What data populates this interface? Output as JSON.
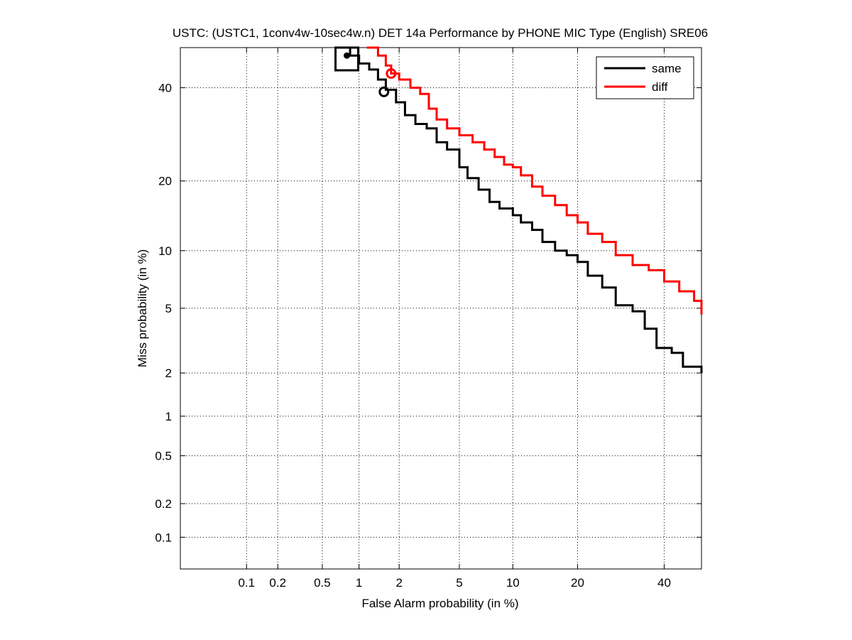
{
  "chart_data": {
    "type": "line",
    "subtype": "DET curve (normal deviate scale)",
    "title": "USTC: (USTC1, 1conv4w-10sec4w.n) DET 14a Performance by PHONE MIC Type (English) SRE06",
    "xlabel": "False Alarm probability (in %)",
    "ylabel": "Miss probability (in %)",
    "xlim": [
      0.02,
      50
    ],
    "ylim": [
      0.05,
      50
    ],
    "x_ticks": [
      {
        "value": 0.1,
        "label": "0.1"
      },
      {
        "value": 0.2,
        "label": "0.2"
      },
      {
        "value": 0.5,
        "label": "0.5"
      },
      {
        "value": 1,
        "label": "1"
      },
      {
        "value": 2,
        "label": "2"
      },
      {
        "value": 5,
        "label": "5"
      },
      {
        "value": 10,
        "label": "10"
      },
      {
        "value": 20,
        "label": "20"
      },
      {
        "value": 40,
        "label": "40"
      }
    ],
    "y_ticks": [
      {
        "value": 0.1,
        "label": "0.1"
      },
      {
        "value": 0.2,
        "label": "0.2"
      },
      {
        "value": 0.5,
        "label": "0.5"
      },
      {
        "value": 1,
        "label": "1"
      },
      {
        "value": 2,
        "label": "2"
      },
      {
        "value": 5,
        "label": "5"
      },
      {
        "value": 10,
        "label": "10"
      },
      {
        "value": 20,
        "label": "20"
      },
      {
        "value": 40,
        "label": "40"
      }
    ],
    "grid": true,
    "legend_position": "top-right",
    "series": [
      {
        "name": "same",
        "color": "#000000",
        "x": [
          0.7,
          0.85,
          1.0,
          1.2,
          1.4,
          1.6,
          1.9,
          2.2,
          2.6,
          3.1,
          3.6,
          4.2,
          5.0,
          5.6,
          6.5,
          7.5,
          8.5,
          10.0,
          11.0,
          12.5,
          14.0,
          16.0,
          18.0,
          20.0,
          22.0,
          25.0,
          28.0,
          32.0,
          35.0,
          38.0,
          42.0,
          45.0,
          50.0
        ],
        "y": [
          50.0,
          48.0,
          46.0,
          44.5,
          42.0,
          39.5,
          36.5,
          33.5,
          31.5,
          30.5,
          27.5,
          26.0,
          22.5,
          20.5,
          18.5,
          16.5,
          15.5,
          14.5,
          13.5,
          12.5,
          11.0,
          10.0,
          9.5,
          8.8,
          7.5,
          6.5,
          5.2,
          4.8,
          3.8,
          2.9,
          2.7,
          2.2,
          2.0
        ]
      },
      {
        "name": "diff",
        "color": "#ff0000",
        "x": [
          1.15,
          1.4,
          1.6,
          1.75,
          2.0,
          2.4,
          2.8,
          3.2,
          3.6,
          4.2,
          5.0,
          6.0,
          7.0,
          8.0,
          9.0,
          10.0,
          11.0,
          12.5,
          14.0,
          16.0,
          18.0,
          20.0,
          22.0,
          25.0,
          28.0,
          32.0,
          36.0,
          40.0,
          44.0,
          48.0,
          50.0
        ],
        "y": [
          50.0,
          48.0,
          45.5,
          43.5,
          42.0,
          40.0,
          38.5,
          35.0,
          32.5,
          30.5,
          29.0,
          27.5,
          26.0,
          24.5,
          23.0,
          22.5,
          21.0,
          19.0,
          17.5,
          16.0,
          14.5,
          13.5,
          12.0,
          11.0,
          9.5,
          8.5,
          8.0,
          7.0,
          6.2,
          5.5,
          4.6
        ]
      }
    ],
    "markers": [
      {
        "series": "same",
        "type": "square",
        "x": 0.8,
        "y": 47.5,
        "color": "#000000"
      },
      {
        "series": "same",
        "type": "circle",
        "x": 1.55,
        "y": 39.0,
        "color": "#000000"
      },
      {
        "series": "same",
        "type": "dot",
        "x": 0.8,
        "y": 48.0,
        "color": "#000000"
      },
      {
        "series": "diff",
        "type": "circle",
        "x": 1.75,
        "y": 43.5,
        "color": "#ff0000"
      }
    ]
  }
}
